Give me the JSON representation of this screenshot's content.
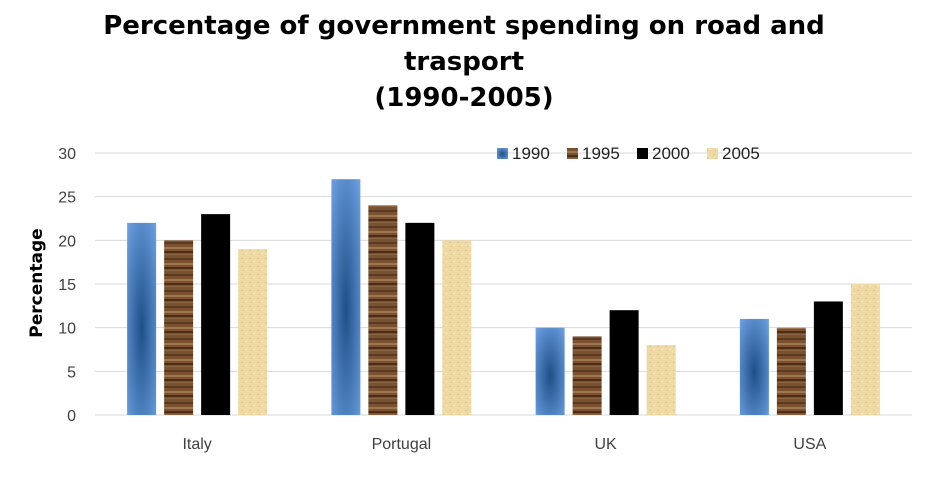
{
  "chart_data": {
    "type": "bar",
    "title_lines": [
      "Percentage of government spending on road and",
      "trasport",
      "(1990-2005)"
    ],
    "xlabel": "",
    "ylabel": "Percentage",
    "ylim": [
      0,
      30
    ],
    "yticks": [
      0,
      5,
      10,
      15,
      20,
      25,
      30
    ],
    "grid": true,
    "legend_position": "top-right",
    "categories": [
      "Italy",
      "Portugal",
      "UK",
      "USA"
    ],
    "series": [
      {
        "name": "1990",
        "values": [
          22,
          27,
          10,
          11
        ],
        "color": "#5b8fd6"
      },
      {
        "name": "1995",
        "values": [
          20,
          24,
          9,
          10
        ],
        "color": "#7a5232"
      },
      {
        "name": "2000",
        "values": [
          23,
          22,
          12,
          13
        ],
        "color": "#000000"
      },
      {
        "name": "2005",
        "values": [
          19,
          20,
          8,
          15
        ],
        "color": "#efd9a4"
      }
    ]
  }
}
